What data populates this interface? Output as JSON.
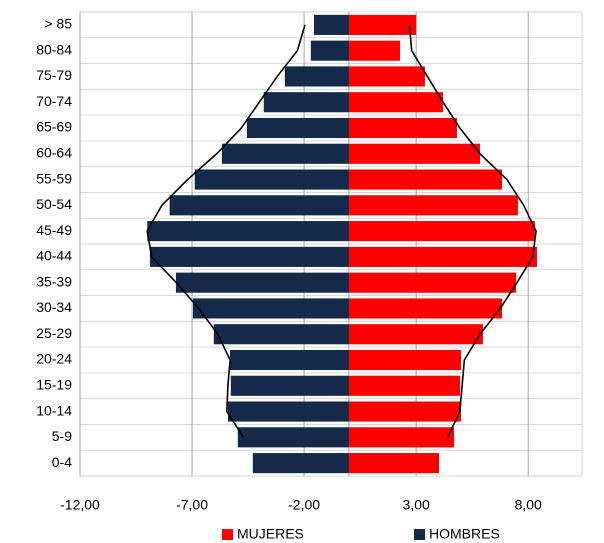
{
  "chart_data": {
    "type": "bar",
    "orientation": "horizontal",
    "categories": [
      "> 85",
      "80-84",
      "75-79",
      "70-74",
      "65-69",
      "60-64",
      "55-59",
      "50-54",
      "45-49",
      "40-44",
      "35-39",
      "30-34",
      "25-29",
      "20-24",
      "15-19",
      "10-14",
      "5-9",
      "0-4"
    ],
    "series": [
      {
        "name": "MUJERES",
        "color": "#ff0000",
        "values": [
          3.0,
          2.28,
          3.39,
          4.2,
          4.82,
          5.85,
          6.83,
          7.54,
          8.3,
          8.39,
          7.46,
          6.83,
          5.98,
          5.0,
          4.96,
          5.0,
          4.69,
          4.02
        ]
      },
      {
        "name": "HOMBRES",
        "color": "#152a4a",
        "values": [
          -1.56,
          -1.7,
          -2.86,
          -3.8,
          -4.55,
          -5.67,
          -6.88,
          -8.0,
          -9.0,
          -8.88,
          -7.72,
          -6.96,
          -6.03,
          -5.31,
          -5.27,
          -5.4,
          -4.96,
          -4.29
        ]
      },
      {
        "type": "line",
        "color": "#000000",
        "values": [
          2.7,
          2.8,
          3.5,
          4.2,
          4.95,
          5.85,
          7.05,
          7.8,
          8.35,
          8.2,
          7.5,
          6.75,
          5.85,
          5.15,
          5.05,
          4.95,
          4.4,
          null
        ]
      },
      {
        "type": "line",
        "color": "#000000",
        "values": [
          -1.96,
          -2.3,
          -3.2,
          -4.0,
          -4.8,
          -5.9,
          -7.2,
          -8.35,
          -9.0,
          -8.8,
          -7.7,
          -6.7,
          -5.85,
          -5.3,
          -5.4,
          -5.45,
          -4.7,
          null
        ]
      }
    ],
    "xlim": [
      -12,
      10.4
    ],
    "xticks": [
      {
        "value": -12,
        "label": "-12,00"
      },
      {
        "value": -7,
        "label": "-7,00"
      },
      {
        "value": -2,
        "label": "-2,00"
      },
      {
        "value": 3,
        "label": "3,00"
      },
      {
        "value": 8,
        "label": "8,00"
      }
    ],
    "grid": true,
    "legend": "bottom"
  }
}
